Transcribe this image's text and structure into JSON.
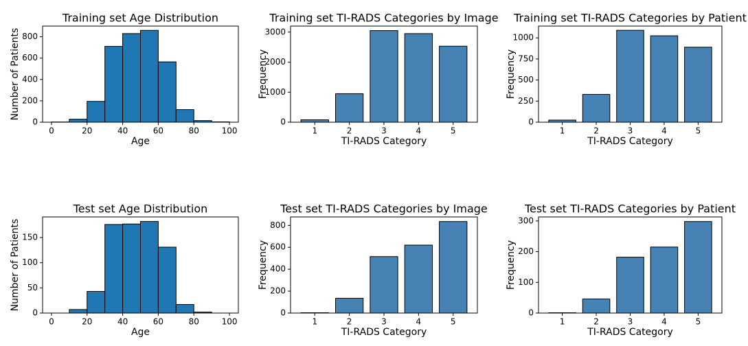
{
  "chart_data": [
    {
      "type": "histogram",
      "title": "Training set Age Distribution",
      "x_label": "Age",
      "y_label": "Number of Patients",
      "bins": [
        0,
        10,
        20,
        30,
        40,
        50,
        60,
        70,
        80,
        90,
        100
      ],
      "values": [
        2,
        28,
        195,
        710,
        830,
        860,
        565,
        118,
        15,
        3
      ],
      "color": "#1f77b4",
      "xlim": [
        -5,
        105
      ],
      "xticks": [
        0,
        20,
        40,
        60,
        80,
        100
      ],
      "ylim": [
        0,
        900
      ],
      "yticks": [
        0,
        200,
        400,
        600,
        800
      ]
    },
    {
      "type": "bar",
      "title": "Training set TI-RADS Categories by Image",
      "x_label": "TI-RADS Category",
      "y_label": "Frequency",
      "categories": [
        "1",
        "2",
        "3",
        "4",
        "5"
      ],
      "values": [
        80,
        950,
        3050,
        2950,
        2530
      ],
      "color": "#4682b4",
      "ylim": [
        0,
        3200
      ],
      "yticks": [
        0,
        1000,
        2000,
        3000
      ]
    },
    {
      "type": "bar",
      "title": "Training set TI-RADS Categories by Patient",
      "x_label": "TI-RADS Category",
      "y_label": "Frequency",
      "categories": [
        "1",
        "2",
        "3",
        "4",
        "5"
      ],
      "values": [
        25,
        330,
        1090,
        1025,
        890
      ],
      "color": "#4682b4",
      "ylim": [
        0,
        1140
      ],
      "yticks": [
        0,
        250,
        500,
        750,
        1000
      ]
    },
    {
      "type": "histogram",
      "title": "Test set Age Distribution",
      "x_label": "Age",
      "y_label": "Number of Patients",
      "bins": [
        0,
        10,
        20,
        30,
        40,
        50,
        60,
        70,
        80,
        90,
        100
      ],
      "values": [
        0,
        7,
        43,
        176,
        177,
        182,
        131,
        17,
        2,
        0
      ],
      "color": "#1f77b4",
      "xlim": [
        -5,
        105
      ],
      "xticks": [
        0,
        20,
        40,
        60,
        80,
        100
      ],
      "ylim": [
        0,
        191
      ],
      "yticks": [
        0,
        50,
        100,
        150
      ]
    },
    {
      "type": "bar",
      "title": "Test set TI-RADS Categories by Image",
      "x_label": "TI-RADS Category",
      "y_label": "Frequency",
      "categories": [
        "1",
        "2",
        "3",
        "4",
        "5"
      ],
      "values": [
        3,
        135,
        515,
        620,
        835
      ],
      "color": "#4682b4",
      "ylim": [
        0,
        877
      ],
      "yticks": [
        0,
        200,
        400,
        600,
        800
      ]
    },
    {
      "type": "bar",
      "title": "Test set TI-RADS Categories by Patient",
      "x_label": "TI-RADS Category",
      "y_label": "Frequency",
      "categories": [
        "1",
        "2",
        "3",
        "4",
        "5"
      ],
      "values": [
        1,
        46,
        182,
        215,
        298
      ],
      "color": "#4682b4",
      "ylim": [
        0,
        313
      ],
      "yticks": [
        0,
        100,
        200,
        300
      ]
    }
  ]
}
